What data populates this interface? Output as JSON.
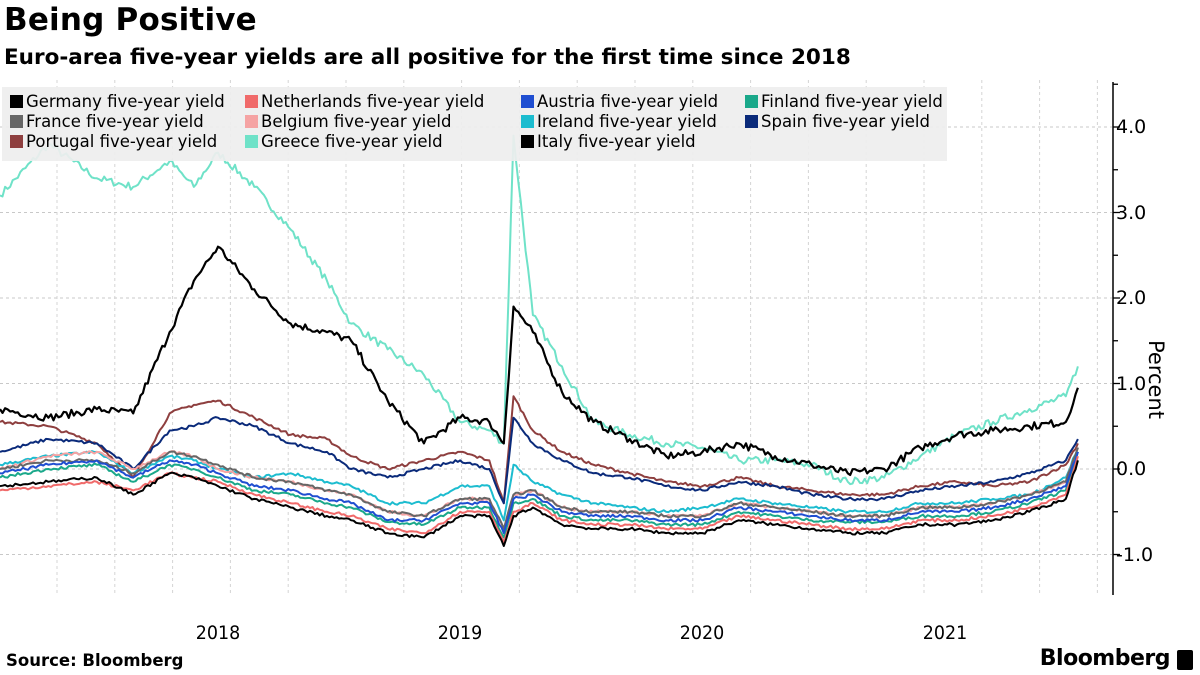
{
  "header": {
    "title": "Being Positive",
    "subtitle": "Euro-area five-year yields are all positive for the first time since 2018"
  },
  "footer": {
    "source": "Source: Bloomberg",
    "brand": "Bloomberg"
  },
  "chart_data": {
    "type": "line",
    "title": "Being Positive",
    "subtitle": "Euro-area five-year yields are all positive for the first time since 2018",
    "xlabel": "",
    "ylabel": "Percent",
    "ylim": [
      -1.45,
      4.5
    ],
    "xlim": [
      2017.6,
      2022.1
    ],
    "yticks": [
      4.0,
      3.0,
      2.0,
      1.0,
      0.0,
      -1.0
    ],
    "ytick_labels": [
      "4.0",
      "3.0",
      "2.0",
      "1.0",
      "0.0",
      "-1.0"
    ],
    "xtick_labels": [
      {
        "label": "2018",
        "x": 2018.5
      },
      {
        "label": "2019",
        "x": 2019.5
      },
      {
        "label": "2020",
        "x": 2020.5
      },
      {
        "label": "2021",
        "x": 2021.5
      }
    ],
    "grid": true,
    "y_axis_position": "right",
    "legend_placement": "top-left",
    "x": [
      2017.6,
      2017.8,
      2018.0,
      2018.15,
      2018.3,
      2018.4,
      2018.5,
      2018.65,
      2018.8,
      2018.95,
      2019.05,
      2019.2,
      2019.35,
      2019.5,
      2019.62,
      2019.68,
      2019.72,
      2019.8,
      2019.92,
      2020.05,
      2020.2,
      2020.35,
      2020.5,
      2020.65,
      2020.8,
      2020.95,
      2021.1,
      2021.25,
      2021.4,
      2021.55,
      2021.7,
      2021.85,
      2022.0,
      2022.05
    ],
    "series": [
      {
        "name": "Germany five-year yield",
        "color": "#000000",
        "values": [
          -0.2,
          -0.15,
          -0.1,
          -0.3,
          -0.05,
          -0.1,
          -0.2,
          -0.35,
          -0.45,
          -0.55,
          -0.6,
          -0.75,
          -0.8,
          -0.55,
          -0.55,
          -0.9,
          -0.55,
          -0.45,
          -0.65,
          -0.7,
          -0.7,
          -0.75,
          -0.75,
          -0.6,
          -0.65,
          -0.7,
          -0.75,
          -0.75,
          -0.65,
          -0.65,
          -0.6,
          -0.5,
          -0.35,
          0.1
        ]
      },
      {
        "name": "Netherlands five-year yield",
        "color": "#f06a6a",
        "values": [
          -0.25,
          -0.2,
          -0.15,
          -0.25,
          -0.05,
          -0.1,
          -0.15,
          -0.3,
          -0.4,
          -0.5,
          -0.55,
          -0.7,
          -0.75,
          -0.5,
          -0.5,
          -0.85,
          -0.5,
          -0.4,
          -0.6,
          -0.65,
          -0.65,
          -0.7,
          -0.7,
          -0.55,
          -0.6,
          -0.65,
          -0.7,
          -0.7,
          -0.6,
          -0.6,
          -0.55,
          -0.45,
          -0.3,
          0.15
        ]
      },
      {
        "name": "Austria five-year yield",
        "color": "#1f4ed1",
        "values": [
          -0.05,
          0.05,
          0.1,
          -0.1,
          0.1,
          0.05,
          -0.05,
          -0.2,
          -0.25,
          -0.35,
          -0.4,
          -0.6,
          -0.6,
          -0.4,
          -0.4,
          -0.75,
          -0.35,
          -0.3,
          -0.5,
          -0.55,
          -0.55,
          -0.6,
          -0.6,
          -0.45,
          -0.5,
          -0.55,
          -0.6,
          -0.6,
          -0.5,
          -0.5,
          -0.45,
          -0.35,
          -0.2,
          0.2
        ]
      },
      {
        "name": "Finland five-year yield",
        "color": "#1aa88a",
        "values": [
          -0.1,
          0.0,
          0.05,
          -0.15,
          0.05,
          0.0,
          -0.1,
          -0.25,
          -0.3,
          -0.4,
          -0.45,
          -0.62,
          -0.65,
          -0.45,
          -0.45,
          -0.8,
          -0.4,
          -0.35,
          -0.55,
          -0.6,
          -0.6,
          -0.65,
          -0.65,
          -0.5,
          -0.55,
          -0.6,
          -0.62,
          -0.62,
          -0.55,
          -0.55,
          -0.5,
          -0.4,
          -0.25,
          0.2
        ]
      },
      {
        "name": "France five-year yield",
        "color": "#666666",
        "values": [
          0.0,
          0.1,
          0.1,
          -0.05,
          0.2,
          0.15,
          0.05,
          -0.1,
          -0.15,
          -0.25,
          -0.3,
          -0.5,
          -0.55,
          -0.35,
          -0.35,
          -0.7,
          -0.3,
          -0.25,
          -0.45,
          -0.5,
          -0.5,
          -0.55,
          -0.55,
          -0.4,
          -0.45,
          -0.5,
          -0.55,
          -0.55,
          -0.45,
          -0.45,
          -0.4,
          -0.3,
          -0.15,
          0.25
        ]
      },
      {
        "name": "Belgium five-year yield",
        "color": "#f5a3a3",
        "values": [
          0.0,
          0.15,
          0.2,
          0.0,
          0.2,
          0.15,
          0.0,
          -0.1,
          -0.15,
          -0.25,
          -0.3,
          -0.5,
          -0.55,
          -0.35,
          -0.35,
          -0.7,
          -0.3,
          -0.25,
          -0.45,
          -0.5,
          -0.5,
          -0.55,
          -0.55,
          -0.4,
          -0.45,
          -0.5,
          -0.55,
          -0.55,
          -0.45,
          -0.45,
          -0.4,
          -0.3,
          -0.15,
          0.25
        ]
      },
      {
        "name": "Ireland five-year yield",
        "color": "#1cbccf",
        "values": [
          0.05,
          0.15,
          0.2,
          -0.05,
          0.15,
          0.1,
          0.0,
          -0.1,
          -0.05,
          -0.15,
          -0.2,
          -0.4,
          -0.4,
          -0.2,
          -0.2,
          -0.6,
          0.05,
          -0.15,
          -0.3,
          -0.4,
          -0.45,
          -0.5,
          -0.45,
          -0.35,
          -0.4,
          -0.45,
          -0.5,
          -0.5,
          -0.4,
          -0.4,
          -0.35,
          -0.3,
          -0.1,
          0.25
        ]
      },
      {
        "name": "Spain five-year yield",
        "color": "#0a2a7a",
        "values": [
          0.2,
          0.35,
          0.3,
          0.0,
          0.45,
          0.5,
          0.6,
          0.5,
          0.3,
          0.2,
          0.0,
          -0.1,
          0.0,
          0.1,
          0.0,
          -0.4,
          0.6,
          0.3,
          0.1,
          -0.05,
          -0.1,
          -0.2,
          -0.25,
          -0.15,
          -0.2,
          -0.3,
          -0.35,
          -0.35,
          -0.25,
          -0.2,
          -0.15,
          -0.05,
          0.1,
          0.35
        ]
      },
      {
        "name": "Portugal five-year yield",
        "color": "#8e3f3f",
        "values": [
          0.55,
          0.5,
          0.3,
          -0.1,
          0.65,
          0.75,
          0.8,
          0.6,
          0.4,
          0.35,
          0.15,
          0.0,
          0.1,
          0.2,
          0.1,
          -0.4,
          0.85,
          0.45,
          0.2,
          0.05,
          -0.05,
          -0.15,
          -0.2,
          -0.1,
          -0.2,
          -0.25,
          -0.3,
          -0.3,
          -0.2,
          -0.15,
          -0.2,
          -0.15,
          0.05,
          0.3
        ]
      },
      {
        "name": "Greece five-year yield",
        "color": "#6fe2c8",
        "values": [
          3.2,
          3.8,
          3.4,
          3.3,
          3.6,
          3.3,
          3.7,
          3.3,
          2.8,
          2.2,
          1.7,
          1.4,
          1.1,
          0.55,
          0.45,
          0.3,
          3.9,
          1.8,
          1.2,
          0.55,
          0.4,
          0.3,
          0.25,
          0.1,
          0.1,
          0.05,
          -0.15,
          -0.1,
          0.15,
          0.4,
          0.55,
          0.7,
          0.85,
          1.2
        ]
      },
      {
        "name": "Italy five-year yield",
        "color": "#000000",
        "values": [
          0.7,
          0.6,
          0.7,
          0.65,
          1.6,
          2.2,
          2.6,
          2.1,
          1.7,
          1.6,
          1.5,
          0.8,
          0.3,
          0.6,
          0.55,
          0.3,
          1.9,
          1.6,
          0.9,
          0.55,
          0.35,
          0.15,
          0.2,
          0.3,
          0.15,
          0.05,
          -0.05,
          0.0,
          0.25,
          0.4,
          0.45,
          0.5,
          0.55,
          0.95
        ]
      }
    ]
  }
}
